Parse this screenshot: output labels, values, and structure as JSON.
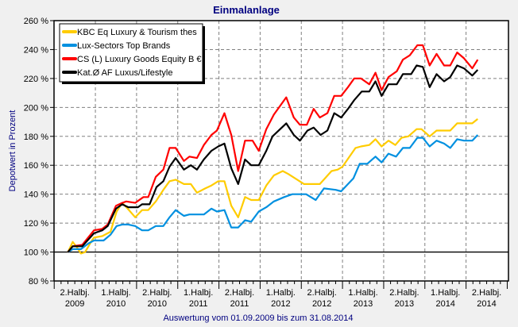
{
  "chart_data": {
    "type": "line",
    "title": "Einmalanlage",
    "ylabel": "Depotwert in Prozent",
    "xlabel": "Auswertung vom 01.09.2009 bis zum 31.08.2014",
    "x_unit": "months since 01.09.2009",
    "ylim": [
      80,
      260
    ],
    "yticks": [
      80,
      100,
      120,
      140,
      160,
      180,
      200,
      220,
      240,
      260
    ],
    "ytick_suffix": " %",
    "grid": true,
    "legend_position": "top-left",
    "xtick_labels": [
      [
        "2.Halbj.",
        "2009"
      ],
      [
        "1.Halbj.",
        "2010"
      ],
      [
        "2.Halbj.",
        "2010"
      ],
      [
        "1.Halbj.",
        "2011"
      ],
      [
        "2.Halbj.",
        "2011"
      ],
      [
        "1.Halbj.",
        "2012"
      ],
      [
        "2.Halbj.",
        "2012"
      ],
      [
        "1.Halbj.",
        "2013"
      ],
      [
        "2.Halbj.",
        "2013"
      ],
      [
        "1.Halbj.",
        "2014"
      ],
      [
        "2.Halbj.",
        "2014"
      ]
    ],
    "series": [
      {
        "name": "KBC Eq Luxury & Tourism thes",
        "color": "#ffcc00",
        "points": [
          [
            0,
            100
          ],
          [
            0.7,
            107
          ],
          [
            1.2,
            104
          ],
          [
            1.9,
            99
          ],
          [
            2.5,
            100
          ],
          [
            3.5,
            108
          ],
          [
            3.8,
            110
          ],
          [
            5,
            111
          ],
          [
            6.2,
            114
          ],
          [
            7.1,
            128
          ],
          [
            7.9,
            134
          ],
          [
            8.7,
            130
          ],
          [
            9.8,
            124
          ],
          [
            10.8,
            129
          ],
          [
            11.7,
            129
          ],
          [
            12.8,
            135
          ],
          [
            13.9,
            143
          ],
          [
            14.8,
            149
          ],
          [
            15.7,
            150
          ],
          [
            16.9,
            147
          ],
          [
            17.9,
            147
          ],
          [
            18.8,
            141
          ],
          [
            20,
            144
          ],
          [
            20.9,
            146
          ],
          [
            21.9,
            149
          ],
          [
            22.8,
            149
          ],
          [
            23.8,
            132
          ],
          [
            24.8,
            124
          ],
          [
            25.8,
            138
          ],
          [
            26.7,
            136
          ],
          [
            27.8,
            136
          ],
          [
            28.9,
            146
          ],
          [
            30,
            153
          ],
          [
            31.3,
            156
          ],
          [
            32.1,
            154
          ],
          [
            34.4,
            147
          ],
          [
            36.7,
            147
          ],
          [
            38.4,
            156
          ],
          [
            39.3,
            157
          ],
          [
            40,
            159
          ],
          [
            41.9,
            172
          ],
          [
            42.7,
            173
          ],
          [
            43.9,
            174
          ],
          [
            44.8,
            178
          ],
          [
            45.7,
            173
          ],
          [
            46.7,
            177
          ],
          [
            47.7,
            174
          ],
          [
            48.6,
            179
          ],
          [
            49.6,
            180
          ],
          [
            50.8,
            185
          ],
          [
            51.5,
            185
          ],
          [
            52.7,
            180
          ],
          [
            53.7,
            184
          ],
          [
            54.8,
            184
          ],
          [
            55.7,
            184
          ],
          [
            56.7,
            189
          ],
          [
            57.7,
            189
          ],
          [
            58.9,
            189
          ],
          [
            59.7,
            192
          ]
        ]
      },
      {
        "name": "Lux-Sectors Top Brands",
        "color": "#0090e0",
        "points": [
          [
            0,
            100
          ],
          [
            0.7,
            102
          ],
          [
            1.9,
            102
          ],
          [
            3,
            106
          ],
          [
            3.8,
            108
          ],
          [
            5.2,
            108
          ],
          [
            6.2,
            112
          ],
          [
            7.1,
            118
          ],
          [
            7.9,
            119
          ],
          [
            8.8,
            119
          ],
          [
            9.8,
            118
          ],
          [
            10.8,
            115
          ],
          [
            11.7,
            115
          ],
          [
            12.8,
            118
          ],
          [
            13.9,
            118
          ],
          [
            14.8,
            124
          ],
          [
            15.7,
            129
          ],
          [
            16.9,
            125
          ],
          [
            17.7,
            126
          ],
          [
            19.8,
            126
          ],
          [
            20.9,
            130
          ],
          [
            21.7,
            128
          ],
          [
            22.8,
            129
          ],
          [
            23.8,
            117
          ],
          [
            24.8,
            117
          ],
          [
            25.8,
            122
          ],
          [
            26.7,
            121
          ],
          [
            27.8,
            128
          ],
          [
            28.9,
            131
          ],
          [
            30,
            135
          ],
          [
            31.5,
            138
          ],
          [
            32.7,
            140
          ],
          [
            34.7,
            140
          ],
          [
            36.1,
            136
          ],
          [
            37.3,
            144
          ],
          [
            39,
            143
          ],
          [
            39.8,
            142
          ],
          [
            40.8,
            147
          ],
          [
            41.6,
            151
          ],
          [
            42.5,
            161
          ],
          [
            43.6,
            161
          ],
          [
            44.8,
            166
          ],
          [
            45.7,
            162
          ],
          [
            46.7,
            168
          ],
          [
            47.8,
            166
          ],
          [
            48.8,
            172
          ],
          [
            49.8,
            172
          ],
          [
            50.9,
            179
          ],
          [
            51.7,
            179
          ],
          [
            52.7,
            173
          ],
          [
            53.7,
            177
          ],
          [
            54.8,
            175
          ],
          [
            55.7,
            172
          ],
          [
            56.7,
            178
          ],
          [
            57.7,
            177
          ],
          [
            58.9,
            177
          ],
          [
            59.7,
            181
          ]
        ]
      },
      {
        "name": "CS (L) Luxury Goods Equity B €",
        "color": "#ff0000",
        "points": [
          [
            0,
            100
          ],
          [
            0.7,
            104
          ],
          [
            2.1,
            105
          ],
          [
            3.8,
            115
          ],
          [
            5,
            116
          ],
          [
            5.8,
            119
          ],
          [
            7,
            132
          ],
          [
            7.9,
            134
          ],
          [
            8.5,
            135
          ],
          [
            9.8,
            134
          ],
          [
            11,
            138
          ],
          [
            11.7,
            138
          ],
          [
            12.8,
            152
          ],
          [
            13.9,
            157
          ],
          [
            14.8,
            172
          ],
          [
            15.7,
            172
          ],
          [
            16.9,
            163
          ],
          [
            17.7,
            166
          ],
          [
            18.8,
            165
          ],
          [
            19.8,
            174
          ],
          [
            20.9,
            181
          ],
          [
            21.7,
            184
          ],
          [
            22.8,
            196
          ],
          [
            23.8,
            181
          ],
          [
            24.8,
            156
          ],
          [
            25.8,
            177
          ],
          [
            26.9,
            177
          ],
          [
            27.8,
            170
          ],
          [
            28.9,
            185
          ],
          [
            30,
            195
          ],
          [
            31.8,
            207
          ],
          [
            32.9,
            193
          ],
          [
            33.8,
            188
          ],
          [
            34.8,
            188
          ],
          [
            35.8,
            199
          ],
          [
            36.7,
            193
          ],
          [
            37.8,
            196
          ],
          [
            38.8,
            208
          ],
          [
            39.8,
            208
          ],
          [
            40.8,
            214
          ],
          [
            41.7,
            220
          ],
          [
            42.7,
            220
          ],
          [
            43.9,
            216
          ],
          [
            44.8,
            224
          ],
          [
            45.7,
            212
          ],
          [
            46.7,
            221
          ],
          [
            47.9,
            225
          ],
          [
            48.8,
            233
          ],
          [
            49.8,
            236
          ],
          [
            50.9,
            243
          ],
          [
            51.7,
            243
          ],
          [
            52.7,
            229
          ],
          [
            53.7,
            237
          ],
          [
            54.8,
            229
          ],
          [
            55.7,
            229
          ],
          [
            56.7,
            238
          ],
          [
            57.7,
            234
          ],
          [
            58.9,
            227
          ],
          [
            59.7,
            233
          ]
        ]
      },
      {
        "name": "Kat.Ø AF Luxus/Lifestyle",
        "color": "#000000",
        "points": [
          [
            0,
            100
          ],
          [
            0.7,
            104
          ],
          [
            2.1,
            104
          ],
          [
            3.8,
            113
          ],
          [
            5,
            115
          ],
          [
            5.8,
            118
          ],
          [
            7,
            130
          ],
          [
            7.9,
            133
          ],
          [
            8.8,
            131
          ],
          [
            10.2,
            131
          ],
          [
            10.8,
            133
          ],
          [
            11.9,
            133
          ],
          [
            12.9,
            145
          ],
          [
            13.9,
            149
          ],
          [
            14.8,
            159
          ],
          [
            15.7,
            165
          ],
          [
            16.9,
            157
          ],
          [
            17.9,
            160
          ],
          [
            18.8,
            157
          ],
          [
            19.8,
            164
          ],
          [
            20.9,
            170
          ],
          [
            21.9,
            173
          ],
          [
            22.8,
            175
          ],
          [
            23.8,
            158
          ],
          [
            24.8,
            147
          ],
          [
            25.8,
            164
          ],
          [
            26.7,
            160
          ],
          [
            27.8,
            160
          ],
          [
            28.9,
            170
          ],
          [
            29.8,
            180
          ],
          [
            31.8,
            189
          ],
          [
            32.9,
            181
          ],
          [
            33.8,
            177
          ],
          [
            34.9,
            184
          ],
          [
            35.8,
            186
          ],
          [
            36.8,
            181
          ],
          [
            37.8,
            184
          ],
          [
            38.8,
            196
          ],
          [
            39.8,
            193
          ],
          [
            40.8,
            199
          ],
          [
            41.7,
            205
          ],
          [
            42.8,
            211
          ],
          [
            43.9,
            211
          ],
          [
            44.8,
            218
          ],
          [
            45.7,
            208
          ],
          [
            46.7,
            216
          ],
          [
            47.9,
            216
          ],
          [
            48.8,
            223
          ],
          [
            50,
            223
          ],
          [
            50.8,
            229
          ],
          [
            51.7,
            228
          ],
          [
            52.7,
            214
          ],
          [
            53.7,
            223
          ],
          [
            54.8,
            218
          ],
          [
            55.7,
            221
          ],
          [
            56.7,
            229
          ],
          [
            57.7,
            227
          ],
          [
            58.9,
            222
          ],
          [
            59.7,
            226
          ]
        ]
      }
    ]
  }
}
